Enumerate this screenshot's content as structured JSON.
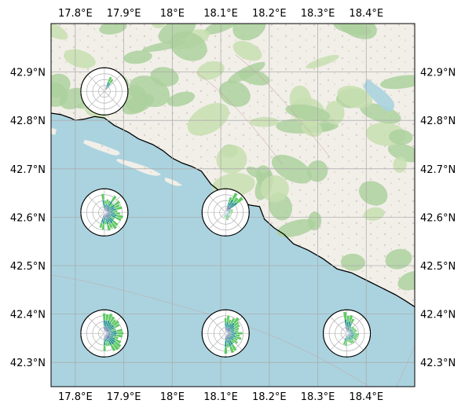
{
  "map": {
    "extent": {
      "lon_min": 17.75,
      "lon_max": 18.5,
      "lat_min": 42.25,
      "lat_max": 43.0
    },
    "basemap": "openstreetmap-tiles",
    "gridlines": true,
    "colors": {
      "sea": "#aad3df",
      "land": "#f2efe9",
      "forest": "#add19e",
      "coastline": "#000000",
      "grid": "#a9a9a9"
    },
    "lon_ticks": [
      {
        "value": 17.8,
        "label": "17.8°E"
      },
      {
        "value": 17.9,
        "label": "17.9°E"
      },
      {
        "value": 18.0,
        "label": "18°E"
      },
      {
        "value": 18.1,
        "label": "18.1°E"
      },
      {
        "value": 18.2,
        "label": "18.2°E"
      },
      {
        "value": 18.3,
        "label": "18.3°E"
      },
      {
        "value": 18.4,
        "label": "18.4°E"
      }
    ],
    "lat_ticks": [
      {
        "value": 42.9,
        "label": "42.9°N"
      },
      {
        "value": 42.8,
        "label": "42.8°N"
      },
      {
        "value": 42.7,
        "label": "42.7°N"
      },
      {
        "value": 42.6,
        "label": "42.6°N"
      },
      {
        "value": 42.5,
        "label": "42.5°N"
      },
      {
        "value": 42.4,
        "label": "42.4°N"
      },
      {
        "value": 42.3,
        "label": "42.3°N"
      }
    ],
    "coastline": [
      [
        17.75,
        42.815
      ],
      [
        17.77,
        42.812
      ],
      [
        17.79,
        42.805
      ],
      [
        17.8,
        42.8
      ],
      [
        17.82,
        42.803
      ],
      [
        17.84,
        42.808
      ],
      [
        17.86,
        42.805
      ],
      [
        17.88,
        42.79
      ],
      [
        17.91,
        42.775
      ],
      [
        17.93,
        42.762
      ],
      [
        17.96,
        42.75
      ],
      [
        17.98,
        42.738
      ],
      [
        18.0,
        42.722
      ],
      [
        18.02,
        42.712
      ],
      [
        18.04,
        42.705
      ],
      [
        18.06,
        42.695
      ],
      [
        18.08,
        42.668
      ],
      [
        18.1,
        42.652
      ],
      [
        18.12,
        42.64
      ],
      [
        18.16,
        42.625
      ],
      [
        18.18,
        42.622
      ],
      [
        18.19,
        42.596
      ],
      [
        18.21,
        42.578
      ],
      [
        18.23,
        42.565
      ],
      [
        18.25,
        42.545
      ],
      [
        18.28,
        42.532
      ],
      [
        18.31,
        42.515
      ],
      [
        18.34,
        42.493
      ],
      [
        18.37,
        42.485
      ],
      [
        18.4,
        42.47
      ],
      [
        18.43,
        42.455
      ],
      [
        18.46,
        42.44
      ],
      [
        18.48,
        42.428
      ],
      [
        18.5,
        42.415
      ]
    ],
    "wind_roses": [
      {
        "lon": 17.86,
        "lat": 42.86,
        "directions": 36,
        "bins": [
          {
            "from_deg": 20,
            "to_deg": 40,
            "frac": 0.95
          }
        ]
      },
      {
        "lon": 17.86,
        "lat": 42.61,
        "directions": 36,
        "bins": [
          {
            "from_deg": -10,
            "to_deg": 200,
            "frac": 0.85
          }
        ]
      },
      {
        "lon": 18.11,
        "lat": 42.61,
        "directions": 36,
        "bins": [
          {
            "from_deg": 15,
            "to_deg": 55,
            "frac": 0.95
          },
          {
            "from_deg": 55,
            "to_deg": 200,
            "frac": 0.35
          }
        ]
      },
      {
        "lon": 17.86,
        "lat": 42.36,
        "directions": 36,
        "bins": [
          {
            "from_deg": -5,
            "to_deg": 180,
            "frac": 0.9
          }
        ]
      },
      {
        "lon": 18.11,
        "lat": 42.36,
        "directions": 36,
        "bins": [
          {
            "from_deg": -5,
            "to_deg": 180,
            "frac": 0.9
          }
        ]
      },
      {
        "lon": 18.36,
        "lat": 42.36,
        "directions": 36,
        "bins": [
          {
            "from_deg": -10,
            "to_deg": 30,
            "frac": 0.95
          },
          {
            "from_deg": 30,
            "to_deg": 200,
            "frac": 0.55
          }
        ]
      }
    ],
    "rose_colors": [
      "#3b528b",
      "#21918c",
      "#5ec962",
      "#440154"
    ]
  }
}
